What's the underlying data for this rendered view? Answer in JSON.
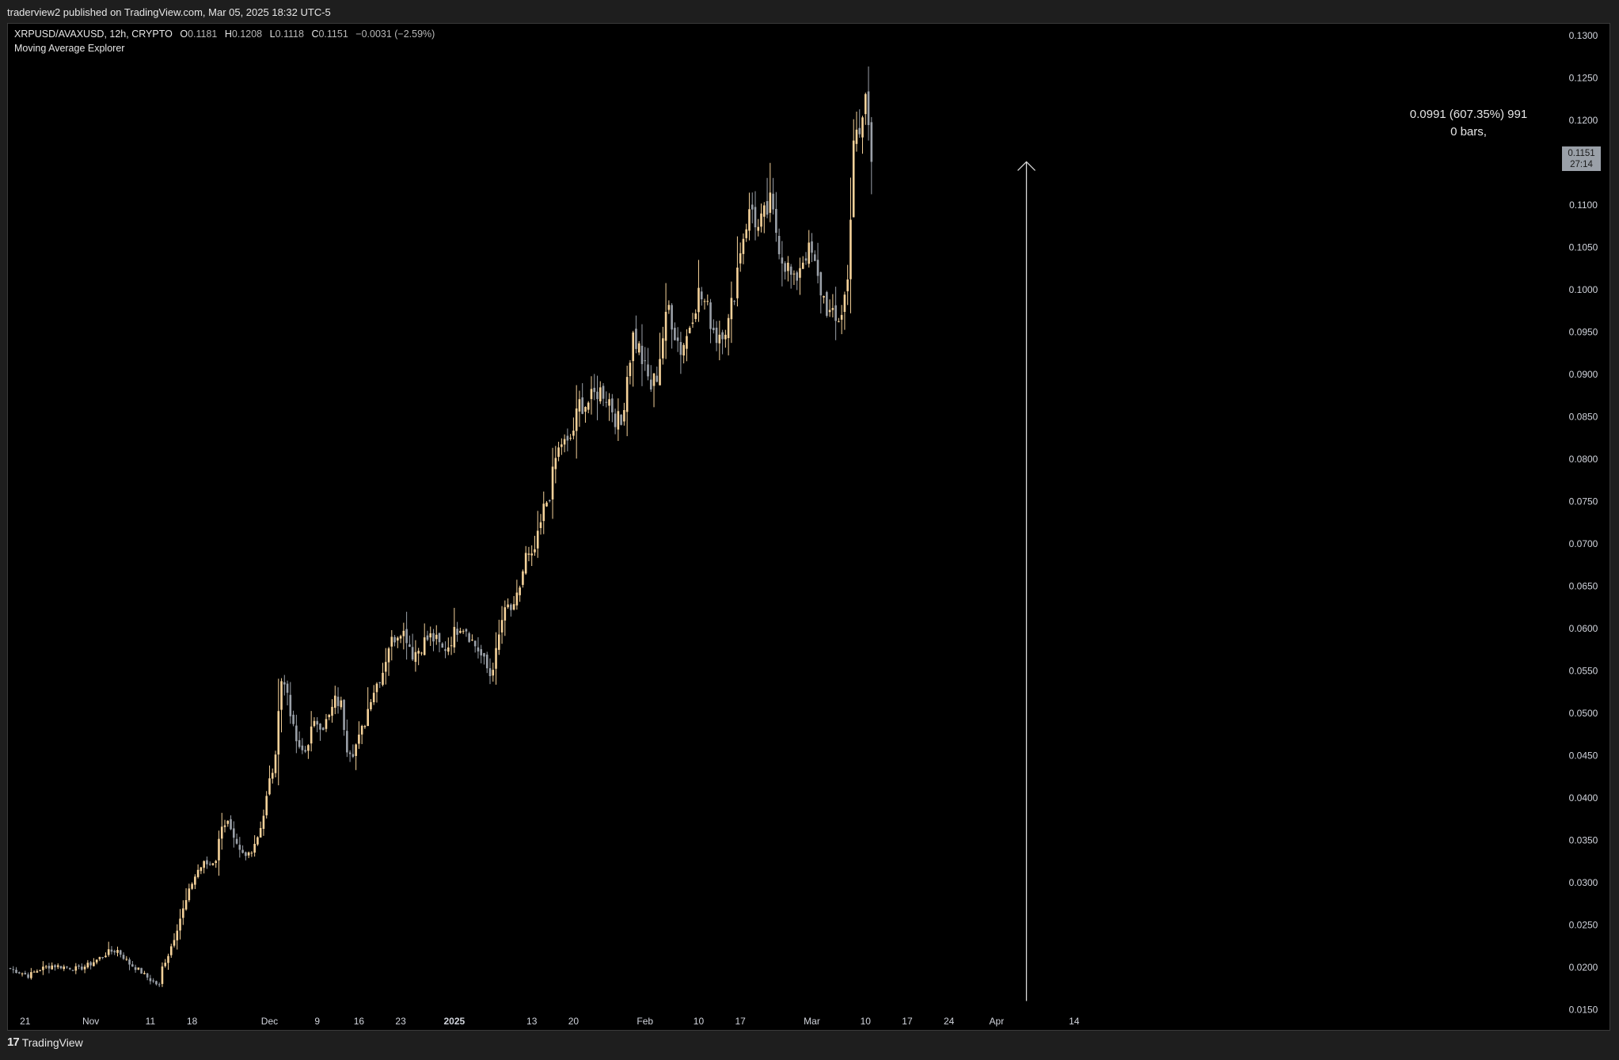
{
  "header": {
    "published_text": "traderview2 published on TradingView.com, Mar 05, 2025 18:32 UTC-5"
  },
  "legend": {
    "symbol": "XRPUSD/AVAXUSD, 12h, CRYPTO",
    "open_label": "O",
    "open": "0.1181",
    "high_label": "H",
    "high": "0.1208",
    "low_label": "L",
    "low": "0.1118",
    "close_label": "C",
    "close": "0.1151",
    "change": "−0.0031 (−2.59%)",
    "indicator": "Moving Average Explorer"
  },
  "measure_tool": {
    "line1": "0.0991 (607.35%) 991",
    "line2": "0 bars,"
  },
  "price_tag": {
    "price": "0.1151",
    "countdown": "27:14"
  },
  "footer": {
    "brand_glyph": "17",
    "brand": "TradingView"
  },
  "colors": {
    "background": "#000000",
    "up_candle": "#f5d29a",
    "down_candle": "#9aa0a8",
    "axis_text": "#d1d4dc",
    "measure_line": "#d9d9d9"
  },
  "chart_data": {
    "type": "candlestick",
    "timeframe": "12h",
    "ylim": [
      0.0125,
      0.1315
    ],
    "yticks": [
      "0.1300",
      "0.1250",
      "0.1200",
      "0.1150",
      "0.1100",
      "0.1050",
      "0.1000",
      "0.0950",
      "0.0900",
      "0.0850",
      "0.0800",
      "0.0750",
      "0.0700",
      "0.0650",
      "0.0600",
      "0.0550",
      "0.0500",
      "0.0450",
      "0.0400",
      "0.0350",
      "0.0300",
      "0.0250",
      "0.0200",
      "0.0150"
    ],
    "xticks": [
      {
        "label": "21",
        "i": 5
      },
      {
        "label": "Nov",
        "i": 27
      },
      {
        "label": "11",
        "i": 47
      },
      {
        "label": "18",
        "i": 61
      },
      {
        "label": "Dec",
        "i": 87
      },
      {
        "label": "9",
        "i": 103
      },
      {
        "label": "16",
        "i": 117
      },
      {
        "label": "23",
        "i": 131
      },
      {
        "label": "2025",
        "i": 149,
        "bold": true
      },
      {
        "label": "13",
        "i": 175
      },
      {
        "label": "20",
        "i": 189
      },
      {
        "label": "Feb",
        "i": 213
      },
      {
        "label": "10",
        "i": 231
      },
      {
        "label": "17",
        "i": 245
      },
      {
        "label": "Mar",
        "i": 269
      },
      {
        "label": "10",
        "i": 287
      },
      {
        "label": "17",
        "i": 301
      },
      {
        "label": "24",
        "i": 315
      },
      {
        "label": "Apr",
        "i": 331
      },
      {
        "label": "14",
        "i": 357
      }
    ],
    "measure": {
      "from_index": 341,
      "from_price": 0.016,
      "to_price": 0.1151
    },
    "close_anchors": [
      [
        0,
        0.0198
      ],
      [
        4,
        0.0193
      ],
      [
        6,
        0.019
      ],
      [
        10,
        0.0198
      ],
      [
        14,
        0.0202
      ],
      [
        19,
        0.02
      ],
      [
        23,
        0.0198
      ],
      [
        27,
        0.0204
      ],
      [
        33,
        0.0218
      ],
      [
        36,
        0.022
      ],
      [
        40,
        0.0204
      ],
      [
        43,
        0.0197
      ],
      [
        47,
        0.0185
      ],
      [
        50,
        0.0178
      ],
      [
        51,
        0.02
      ],
      [
        53,
        0.0215
      ],
      [
        55,
        0.0235
      ],
      [
        57,
        0.0258
      ],
      [
        59,
        0.0278
      ],
      [
        61,
        0.03
      ],
      [
        63,
        0.0315
      ],
      [
        65,
        0.0322
      ],
      [
        67,
        0.0322
      ],
      [
        69,
        0.0328
      ],
      [
        71,
        0.037
      ],
      [
        73,
        0.037
      ],
      [
        75,
        0.0348
      ],
      [
        77,
        0.0335
      ],
      [
        79,
        0.033
      ],
      [
        81,
        0.034
      ],
      [
        83,
        0.0355
      ],
      [
        85,
        0.038
      ],
      [
        87,
        0.042
      ],
      [
        89,
        0.0445
      ],
      [
        90,
        0.051
      ],
      [
        91,
        0.054
      ],
      [
        93,
        0.0525
      ],
      [
        95,
        0.048
      ],
      [
        97,
        0.0455
      ],
      [
        99,
        0.0455
      ],
      [
        101,
        0.048
      ],
      [
        103,
        0.049
      ],
      [
        105,
        0.0485
      ],
      [
        107,
        0.0495
      ],
      [
        109,
        0.0515
      ],
      [
        111,
        0.051
      ],
      [
        113,
        0.046
      ],
      [
        115,
        0.0455
      ],
      [
        117,
        0.047
      ],
      [
        119,
        0.049
      ],
      [
        121,
        0.052
      ],
      [
        123,
        0.0535
      ],
      [
        125,
        0.055
      ],
      [
        127,
        0.058
      ],
      [
        129,
        0.059
      ],
      [
        131,
        0.06
      ],
      [
        133,
        0.059
      ],
      [
        135,
        0.057
      ],
      [
        137,
        0.0575
      ],
      [
        139,
        0.0585
      ],
      [
        141,
        0.059
      ],
      [
        143,
        0.0585
      ],
      [
        145,
        0.0575
      ],
      [
        147,
        0.058
      ],
      [
        149,
        0.0595
      ],
      [
        151,
        0.0605
      ],
      [
        153,
        0.06
      ],
      [
        155,
        0.0585
      ],
      [
        157,
        0.0575
      ],
      [
        159,
        0.056
      ],
      [
        161,
        0.0545
      ],
      [
        163,
        0.057
      ],
      [
        165,
        0.061
      ],
      [
        167,
        0.0625
      ],
      [
        169,
        0.062
      ],
      [
        171,
        0.065
      ],
      [
        173,
        0.0685
      ],
      [
        175,
        0.068
      ],
      [
        177,
        0.0705
      ],
      [
        179,
        0.074
      ],
      [
        181,
        0.076
      ],
      [
        183,
        0.08
      ],
      [
        185,
        0.082
      ],
      [
        187,
        0.0815
      ],
      [
        189,
        0.0835
      ],
      [
        191,
        0.0865
      ],
      [
        193,
        0.0865
      ],
      [
        195,
        0.087
      ],
      [
        197,
        0.088
      ],
      [
        199,
        0.088
      ],
      [
        201,
        0.087
      ],
      [
        203,
        0.085
      ],
      [
        205,
        0.084
      ],
      [
        207,
        0.09
      ],
      [
        209,
        0.0945
      ],
      [
        211,
        0.093
      ],
      [
        213,
        0.0905
      ],
      [
        215,
        0.0885
      ],
      [
        217,
        0.09
      ],
      [
        219,
        0.0945
      ],
      [
        221,
        0.098
      ],
      [
        223,
        0.095
      ],
      [
        225,
        0.093
      ],
      [
        227,
        0.0945
      ],
      [
        229,
        0.0975
      ],
      [
        231,
        0.0995
      ],
      [
        233,
        0.0985
      ],
      [
        235,
        0.0965
      ],
      [
        237,
        0.0945
      ],
      [
        239,
        0.0955
      ],
      [
        241,
        0.096
      ],
      [
        243,
        0.1
      ],
      [
        245,
        0.105
      ],
      [
        247,
        0.108
      ],
      [
        249,
        0.1095
      ],
      [
        251,
        0.107
      ],
      [
        253,
        0.1085
      ],
      [
        255,
        0.11
      ],
      [
        257,
        0.107
      ],
      [
        259,
        0.104
      ],
      [
        261,
        0.1025
      ],
      [
        263,
        0.1005
      ],
      [
        265,
        0.103
      ],
      [
        267,
        0.1045
      ],
      [
        269,
        0.104
      ],
      [
        271,
        0.101
      ],
      [
        273,
        0.099
      ],
      [
        275,
        0.097
      ],
      [
        277,
        0.096
      ],
      [
        279,
        0.0975
      ],
      [
        281,
        0.101
      ],
      [
        283,
        0.118
      ],
      [
        285,
        0.1175
      ],
      [
        287,
        0.123
      ],
      [
        289,
        0.1151
      ]
    ]
  }
}
